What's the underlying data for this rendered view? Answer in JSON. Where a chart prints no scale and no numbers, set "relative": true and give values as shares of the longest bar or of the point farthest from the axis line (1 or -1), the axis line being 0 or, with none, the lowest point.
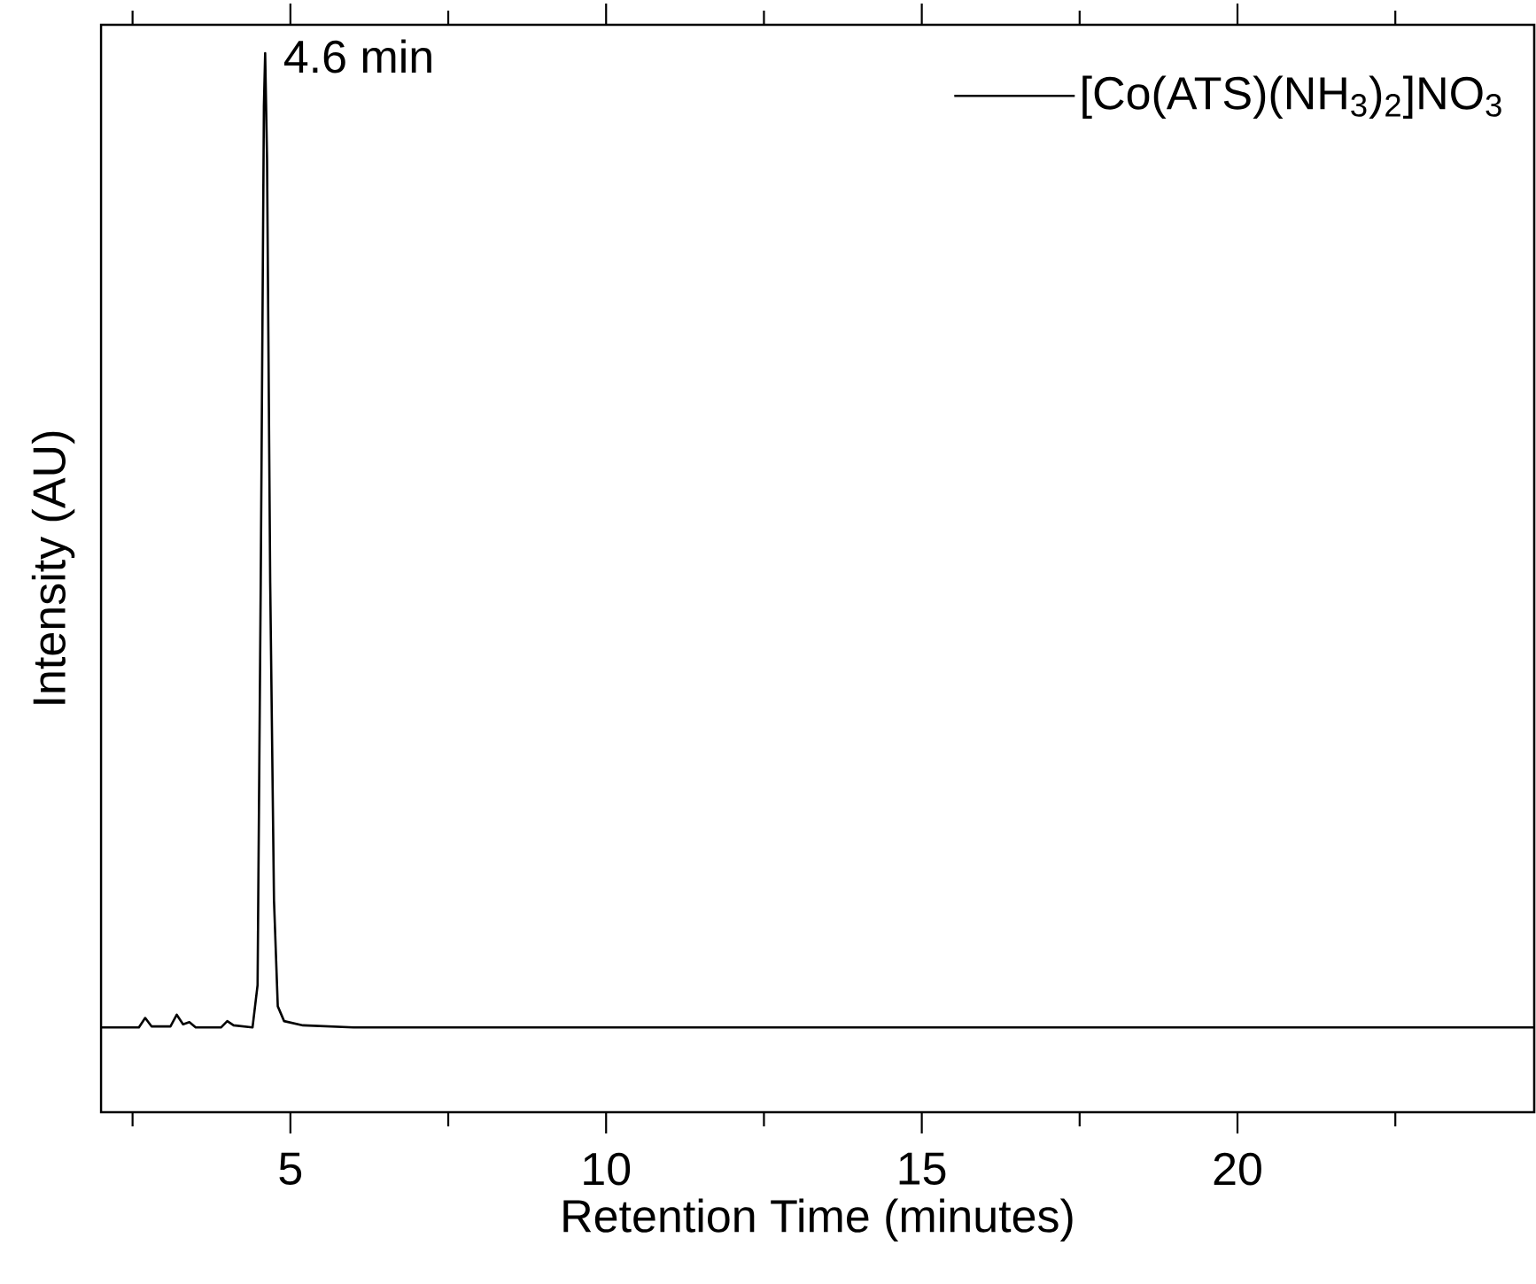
{
  "chart_data": {
    "type": "line",
    "relative": true,
    "xlabel": "Retention Time (minutes)",
    "ylabel": "Intensity (AU)",
    "xlim": [
      2,
      24.7
    ],
    "xticks": [
      {
        "value": 2.5,
        "label": null
      },
      5,
      {
        "value": 7.5,
        "label": null
      },
      10,
      {
        "value": 12.5,
        "label": null
      },
      15,
      {
        "value": 17.5,
        "label": null
      },
      20,
      {
        "value": 22.5,
        "label": null
      }
    ],
    "legend": "top right",
    "annotations": [
      {
        "text": "4.6 min",
        "x": 4.6,
        "y": 1
      }
    ],
    "series": [
      {
        "name": "[Co(ATS)(NH$_{3}$)$_{2}$]NO$_{3}$",
        "color": "#000000",
        "x": [
          2.0,
          2.6,
          2.7,
          2.8,
          3.1,
          3.2,
          3.3,
          3.4,
          3.5,
          3.9,
          4.0,
          4.1,
          4.4,
          4.48,
          4.53,
          4.58,
          4.6,
          4.63,
          4.68,
          4.74,
          4.8,
          4.9,
          5.2,
          6.0,
          24.7
        ],
        "values": [
          0.08,
          0.08,
          0.089,
          0.081,
          0.081,
          0.092,
          0.083,
          0.085,
          0.08,
          0.08,
          0.086,
          0.082,
          0.08,
          0.12,
          0.5,
          0.95,
          1.0,
          0.9,
          0.5,
          0.2,
          0.1,
          0.086,
          0.082,
          0.08,
          0.08
        ]
      }
    ]
  }
}
